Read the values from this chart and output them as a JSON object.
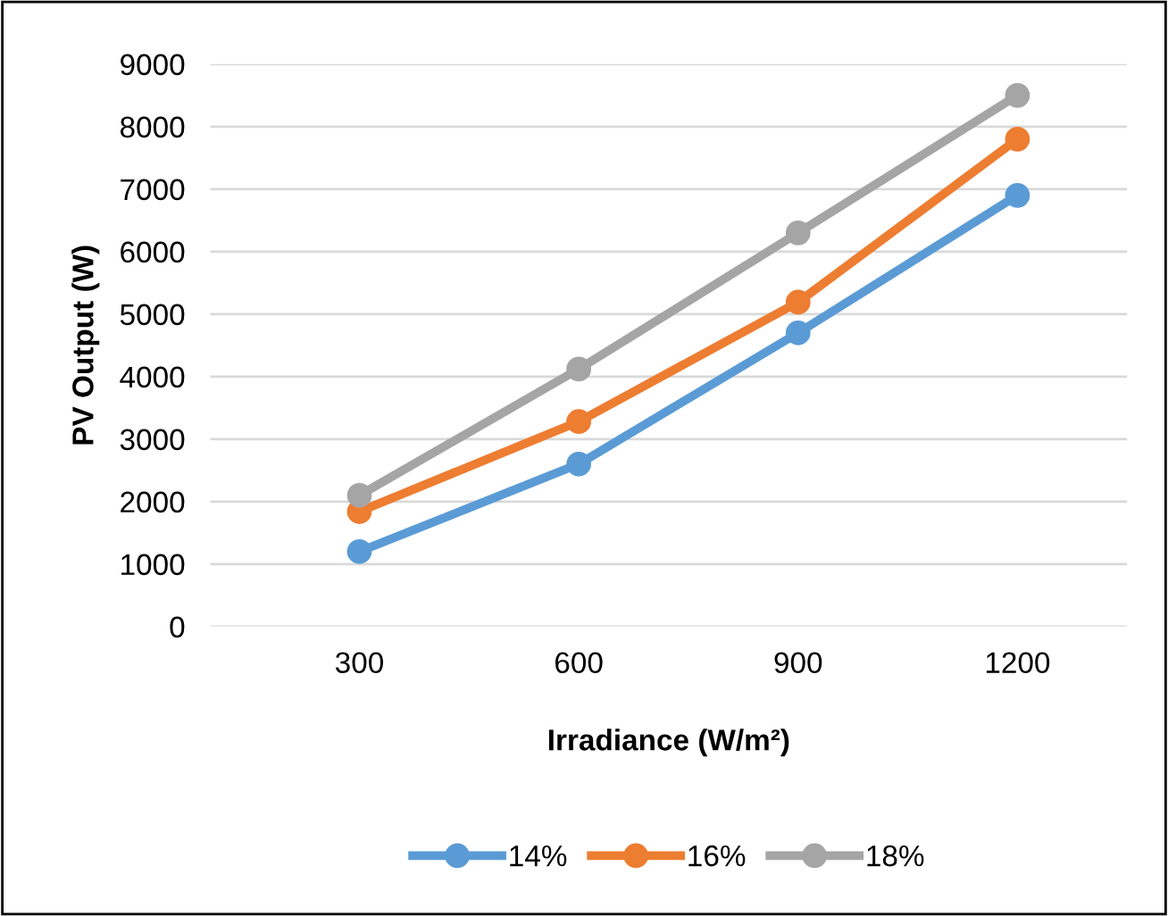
{
  "chart_data": {
    "type": "line",
    "xlabel": "Irradiance (W/m²)",
    "ylabel": "PV Output (W)",
    "categories": [
      "300",
      "600",
      "900",
      "1200"
    ],
    "series": [
      {
        "name": "14%",
        "color": "#5b9bd5",
        "values": [
          1200,
          2600,
          4700,
          6900
        ]
      },
      {
        "name": "16%",
        "color": "#ed7d31",
        "values": [
          1840,
          3280,
          5190,
          7800
        ]
      },
      {
        "name": "18%",
        "color": "#a5a5a5",
        "values": [
          2100,
          4120,
          6300,
          8500
        ]
      }
    ],
    "ylim": [
      0,
      9000
    ],
    "yticks": [
      0,
      1000,
      2000,
      3000,
      4000,
      5000,
      6000,
      7000,
      8000,
      9000
    ],
    "grid": "y",
    "legend": "bottom",
    "marker": "circle",
    "line_style": "solid"
  }
}
